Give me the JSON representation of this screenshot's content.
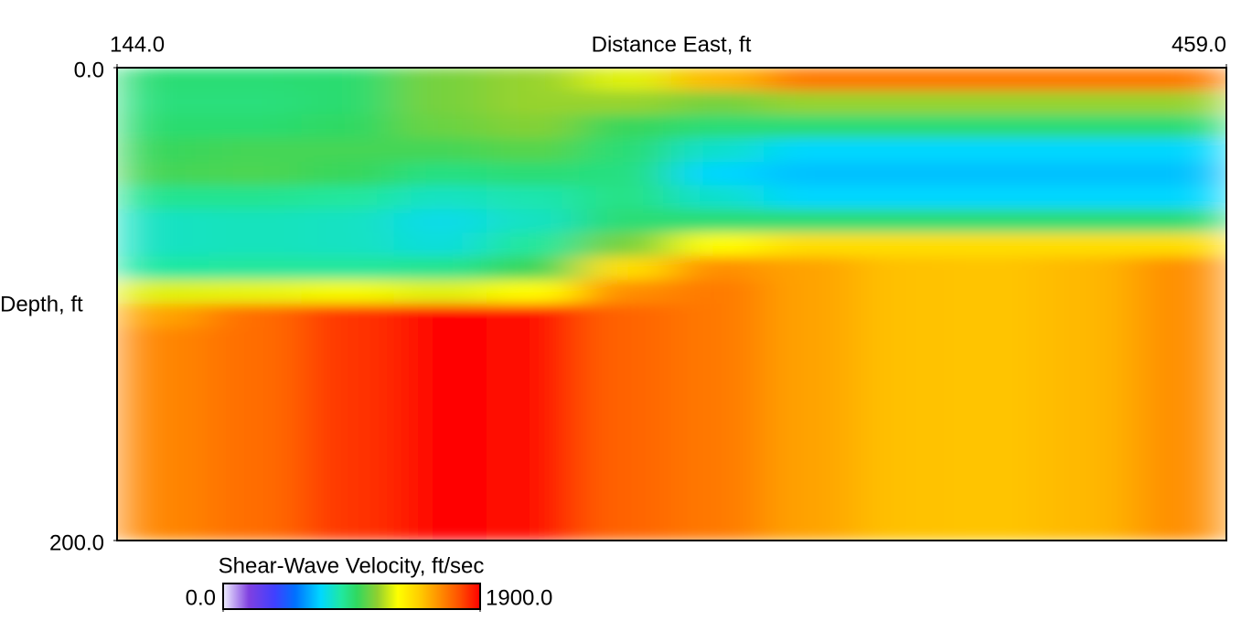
{
  "chart_data": {
    "type": "heatmap",
    "x_label": "Distance East, ft",
    "y_label": "Depth, ft",
    "xlim": [
      144,
      459
    ],
    "xticks": [
      {
        "value": 144,
        "label": "144.0"
      },
      {
        "value": 459,
        "label": "459.0"
      }
    ],
    "ylim": [
      0,
      200
    ],
    "y_inverted": true,
    "yticks": [
      {
        "value": 0,
        "label": "0.0"
      },
      {
        "value": 200,
        "label": "200.0"
      }
    ],
    "x": [
      157.125,
      183.375,
      209.625,
      235.875,
      262.125,
      288.375,
      314.625,
      340.875,
      367.125,
      393.375,
      419.625,
      445.875
    ],
    "y": [
      5,
      15,
      25,
      35,
      45,
      55,
      65,
      75,
      85,
      95,
      105,
      115,
      125,
      135,
      145,
      155,
      165,
      175,
      185,
      195
    ],
    "z": [
      [
        950,
        950,
        960,
        1100,
        1150,
        1250,
        1500,
        1650,
        1650,
        1650,
        1650,
        1650
      ],
      [
        940,
        940,
        960,
        1100,
        1150,
        1150,
        1100,
        1150,
        1150,
        1150,
        1150,
        1150
      ],
      [
        960,
        960,
        980,
        1080,
        1120,
        1000,
        950,
        950,
        950,
        950,
        950,
        950
      ],
      [
        1000,
        1020,
        1020,
        1020,
        1050,
        950,
        800,
        720,
        720,
        720,
        720,
        720
      ],
      [
        1020,
        1030,
        1000,
        930,
        950,
        930,
        720,
        680,
        680,
        680,
        680,
        680
      ],
      [
        900,
        900,
        880,
        820,
        850,
        920,
        800,
        720,
        720,
        720,
        720,
        720
      ],
      [
        820,
        830,
        820,
        760,
        820,
        950,
        950,
        950,
        950,
        950,
        950,
        950
      ],
      [
        820,
        830,
        820,
        780,
        880,
        1100,
        1300,
        1400,
        1400,
        1400,
        1400,
        1400
      ],
      [
        870,
        880,
        880,
        900,
        1000,
        1400,
        1600,
        1550,
        1480,
        1470,
        1500,
        1600
      ],
      [
        1250,
        1260,
        1280,
        1250,
        1300,
        1600,
        1650,
        1550,
        1480,
        1470,
        1500,
        1600
      ],
      [
        1550,
        1680,
        1800,
        1900,
        1880,
        1700,
        1650,
        1550,
        1480,
        1470,
        1500,
        1600
      ],
      [
        1620,
        1680,
        1800,
        1900,
        1880,
        1700,
        1650,
        1550,
        1480,
        1470,
        1500,
        1600
      ],
      [
        1620,
        1680,
        1800,
        1900,
        1880,
        1700,
        1650,
        1550,
        1480,
        1470,
        1500,
        1600
      ],
      [
        1620,
        1680,
        1800,
        1900,
        1880,
        1700,
        1650,
        1550,
        1480,
        1470,
        1500,
        1600
      ],
      [
        1620,
        1680,
        1800,
        1900,
        1880,
        1700,
        1650,
        1550,
        1480,
        1470,
        1500,
        1600
      ],
      [
        1620,
        1680,
        1800,
        1900,
        1880,
        1700,
        1650,
        1550,
        1480,
        1470,
        1500,
        1600
      ],
      [
        1620,
        1680,
        1800,
        1900,
        1880,
        1700,
        1650,
        1550,
        1480,
        1470,
        1500,
        1600
      ],
      [
        1620,
        1680,
        1800,
        1900,
        1880,
        1700,
        1650,
        1550,
        1480,
        1470,
        1500,
        1600
      ],
      [
        1620,
        1680,
        1800,
        1900,
        1880,
        1700,
        1650,
        1550,
        1480,
        1470,
        1500,
        1600
      ],
      [
        1620,
        1680,
        1800,
        1900,
        1880,
        1700,
        1650,
        1550,
        1480,
        1470,
        1500,
        1600
      ]
    ],
    "clim": [
      0,
      1900
    ],
    "colorscale": [
      [
        0,
        "#f0f0ff"
      ],
      [
        0.1,
        "#8040e0"
      ],
      [
        0.2,
        "#4040ff"
      ],
      [
        0.28,
        "#0070ff"
      ],
      [
        0.38,
        "#00d8ff"
      ],
      [
        0.46,
        "#20e8a0"
      ],
      [
        0.52,
        "#30d860"
      ],
      [
        0.6,
        "#90d030"
      ],
      [
        0.68,
        "#ffff00"
      ],
      [
        0.76,
        "#ffd000"
      ],
      [
        0.84,
        "#ff9000"
      ],
      [
        0.92,
        "#ff5000"
      ],
      [
        1,
        "#ff0000"
      ]
    ],
    "colorbar": {
      "label": "Shear-Wave Velocity, ft/sec",
      "ticks": [
        {
          "value": 0,
          "label": "0.0"
        },
        {
          "value": 1900,
          "label": "1900.0"
        }
      ]
    }
  }
}
